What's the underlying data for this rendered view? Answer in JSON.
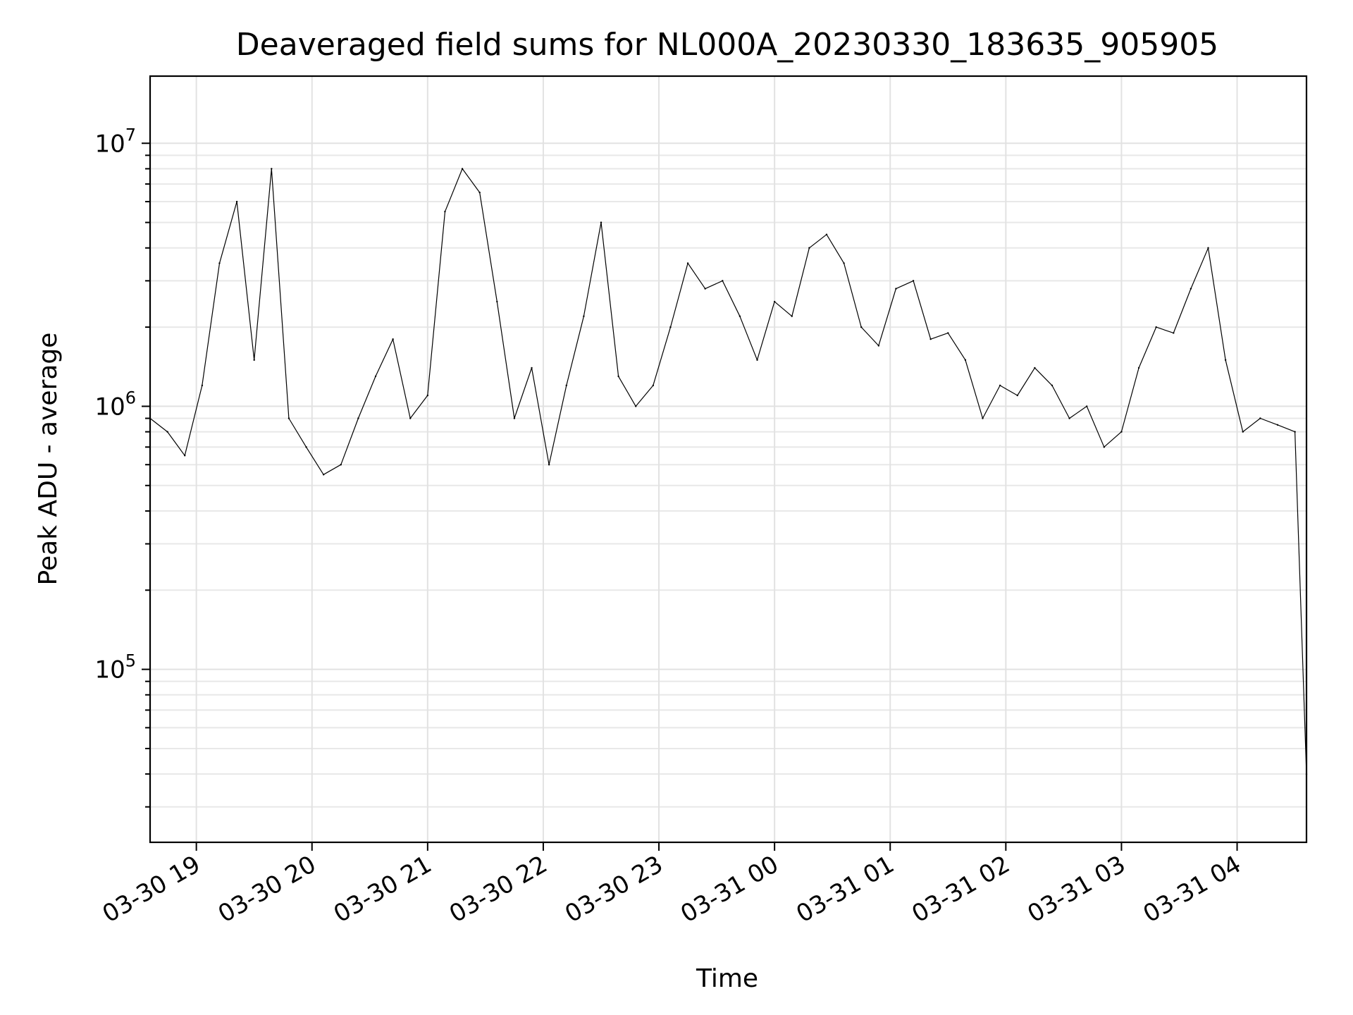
{
  "chart_data": {
    "type": "line",
    "title": "Deaveraged field sums for NL000A_20230330_183635_905905",
    "xlabel": "Time",
    "ylabel": "Peak ADU - average",
    "yscale": "log",
    "ylim": [
      22000,
      18000000
    ],
    "xlim": [
      "2023-03-30 18:36",
      "2023-03-31 04:36"
    ],
    "grid": true,
    "x_ticks": [
      {
        "value": "2023-03-30 19:00",
        "label": "03-30 19"
      },
      {
        "value": "2023-03-30 20:00",
        "label": "03-30 20"
      },
      {
        "value": "2023-03-30 21:00",
        "label": "03-30 21"
      },
      {
        "value": "2023-03-30 22:00",
        "label": "03-30 22"
      },
      {
        "value": "2023-03-30 23:00",
        "label": "03-30 23"
      },
      {
        "value": "2023-03-31 00:00",
        "label": "03-31 00"
      },
      {
        "value": "2023-03-31 01:00",
        "label": "03-31 01"
      },
      {
        "value": "2023-03-31 02:00",
        "label": "03-31 02"
      },
      {
        "value": "2023-03-31 03:00",
        "label": "03-31 03"
      },
      {
        "value": "2023-03-31 04:00",
        "label": "03-31 04"
      }
    ],
    "y_ticks": [
      {
        "value": 100000,
        "base": "10",
        "exp": "5"
      },
      {
        "value": 1000000,
        "base": "10",
        "exp": "6"
      },
      {
        "value": 10000000,
        "base": "10",
        "exp": "7"
      }
    ],
    "series": [
      {
        "color": "#000000",
        "x": [
          "2023-03-30 18:36",
          "2023-03-30 18:45",
          "2023-03-30 18:54",
          "2023-03-30 19:03",
          "2023-03-30 19:12",
          "2023-03-30 19:21",
          "2023-03-30 19:30",
          "2023-03-30 19:39",
          "2023-03-30 19:48",
          "2023-03-30 19:57",
          "2023-03-30 20:06",
          "2023-03-30 20:15",
          "2023-03-30 20:24",
          "2023-03-30 20:33",
          "2023-03-30 20:42",
          "2023-03-30 20:51",
          "2023-03-30 21:00",
          "2023-03-30 21:09",
          "2023-03-30 21:18",
          "2023-03-30 21:27",
          "2023-03-30 21:36",
          "2023-03-30 21:45",
          "2023-03-30 21:54",
          "2023-03-30 22:03",
          "2023-03-30 22:12",
          "2023-03-30 22:21",
          "2023-03-30 22:30",
          "2023-03-30 22:39",
          "2023-03-30 22:48",
          "2023-03-30 22:57",
          "2023-03-30 23:06",
          "2023-03-30 23:15",
          "2023-03-30 23:24",
          "2023-03-30 23:33",
          "2023-03-30 23:42",
          "2023-03-30 23:51",
          "2023-03-31 00:00",
          "2023-03-31 00:09",
          "2023-03-31 00:18",
          "2023-03-31 00:27",
          "2023-03-31 00:36",
          "2023-03-31 00:45",
          "2023-03-31 00:54",
          "2023-03-31 01:03",
          "2023-03-31 01:12",
          "2023-03-31 01:21",
          "2023-03-31 01:30",
          "2023-03-31 01:39",
          "2023-03-31 01:48",
          "2023-03-31 01:57",
          "2023-03-31 02:06",
          "2023-03-31 02:15",
          "2023-03-31 02:24",
          "2023-03-31 02:33",
          "2023-03-31 02:42",
          "2023-03-31 02:51",
          "2023-03-31 03:00",
          "2023-03-31 03:09",
          "2023-03-31 03:18",
          "2023-03-31 03:27",
          "2023-03-31 03:36",
          "2023-03-31 03:45",
          "2023-03-31 03:54",
          "2023-03-31 04:03",
          "2023-03-31 04:12",
          "2023-03-31 04:21",
          "2023-03-31 04:30",
          "2023-03-31 04:36"
        ],
        "values": [
          900000,
          800000,
          650000,
          1200000,
          3500000,
          6000000,
          1500000,
          8000000,
          900000,
          700000,
          550000,
          600000,
          900000,
          1300000,
          1800000,
          900000,
          1100000,
          5500000,
          8000000,
          6500000,
          2500000,
          900000,
          1400000,
          600000,
          1200000,
          2200000,
          5000000,
          1300000,
          1000000,
          1200000,
          2000000,
          3500000,
          2800000,
          3000000,
          2200000,
          1500000,
          2500000,
          2200000,
          4000000,
          4500000,
          3500000,
          2000000,
          1700000,
          2800000,
          3000000,
          1800000,
          1900000,
          1500000,
          900000,
          1200000,
          1100000,
          1400000,
          1200000,
          900000,
          1000000,
          700000,
          800000,
          1400000,
          2000000,
          1900000,
          2800000,
          4000000,
          1500000,
          800000,
          900000,
          850000,
          800000,
          40000
        ]
      }
    ]
  }
}
